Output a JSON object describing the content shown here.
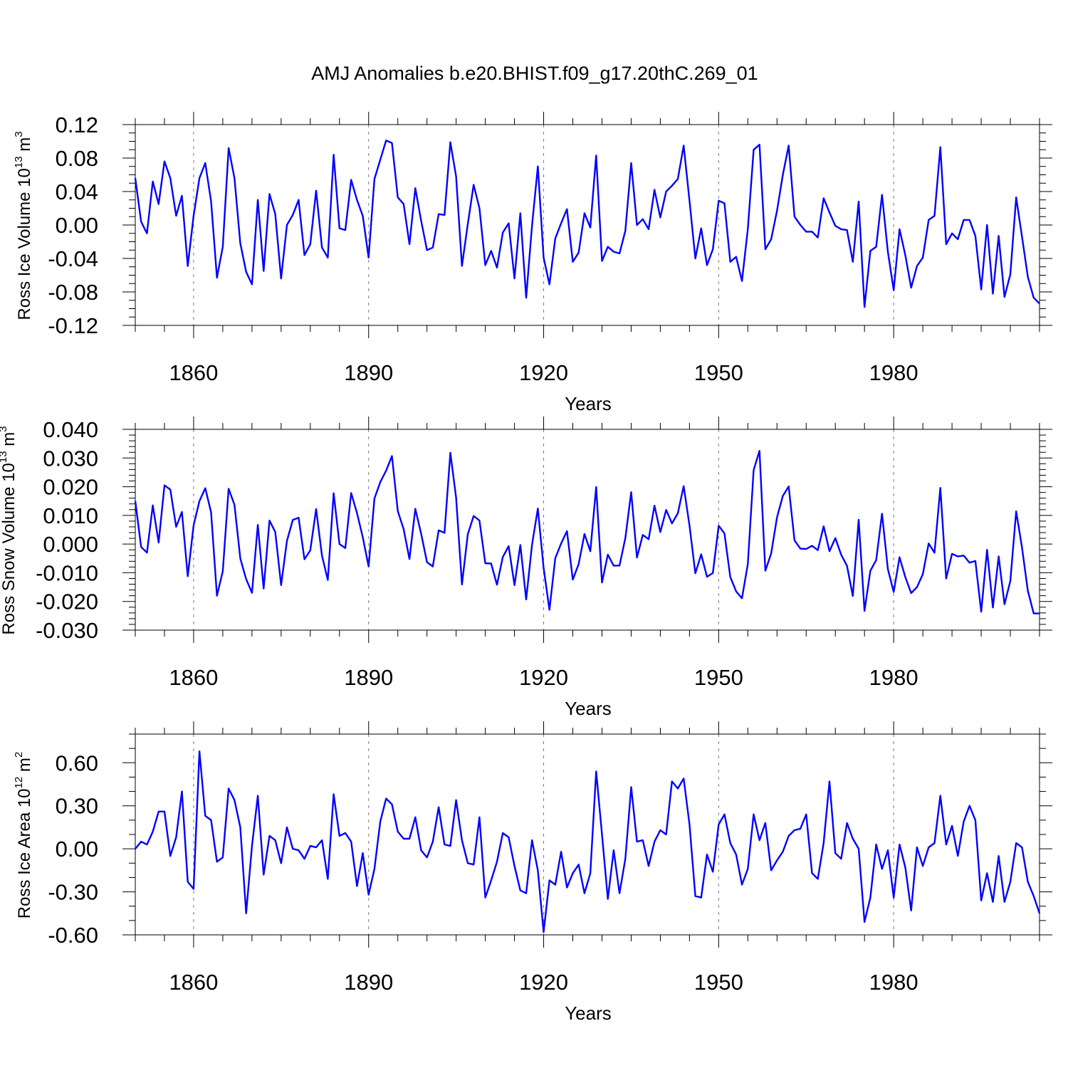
{
  "title": "AMJ Anomalies b.e20.BHIST.f09_g17.20thC.269_01",
  "colors": {
    "line": "#0000ff",
    "axis": "#000000",
    "grid": "#777777"
  },
  "chart_data": [
    {
      "type": "line",
      "ylabel": "Ross Ice Volume 10",
      "ylabel_exp": "13",
      "ylabel_unit": " m",
      "ylabel_unit_exp": "3",
      "xlabel": "Years",
      "xlim": [
        1850,
        2005
      ],
      "ylim": [
        -0.12,
        0.12
      ],
      "yticks": [
        -0.12,
        -0.08,
        -0.04,
        0.0,
        0.04,
        0.08,
        0.12
      ],
      "ytick_labels": [
        "-0.12",
        "-0.08",
        "-0.04",
        "0.00",
        "0.04",
        "0.08",
        "0.12"
      ],
      "ytick_minor_step": 0.01,
      "xticks": [
        1860,
        1890,
        1920,
        1950,
        1980
      ],
      "xtick_labels": [
        "1860",
        "1890",
        "1920",
        "1950",
        "1980"
      ],
      "xtick_minor_step": 5,
      "grid": "x-dashed",
      "series": [
        {
          "name": "Ross Ice Volume",
          "x_start": 1850,
          "values": [
            0.056,
            0.004,
            -0.01,
            0.052,
            0.025,
            0.076,
            0.056,
            0.011,
            0.035,
            -0.049,
            0.011,
            0.056,
            0.074,
            0.028,
            -0.063,
            -0.026,
            0.092,
            0.056,
            -0.022,
            -0.056,
            -0.071,
            0.03,
            -0.055,
            0.037,
            0.013,
            -0.064,
            0.0,
            0.012,
            0.03,
            -0.036,
            -0.023,
            0.041,
            -0.027,
            -0.039,
            0.084,
            -0.004,
            -0.006,
            0.054,
            0.03,
            0.011,
            -0.039,
            0.055,
            0.078,
            0.101,
            0.098,
            0.033,
            0.025,
            -0.023,
            0.044,
            0.005,
            -0.03,
            -0.027,
            0.013,
            0.012,
            0.099,
            0.058,
            -0.049,
            0.001,
            0.048,
            0.02,
            -0.048,
            -0.031,
            -0.051,
            -0.009,
            0.002,
            -0.064,
            0.014,
            -0.087,
            -0.001,
            0.07,
            -0.039,
            -0.071,
            -0.016,
            0.002,
            0.019,
            -0.044,
            -0.033,
            0.014,
            -0.003,
            0.083,
            -0.043,
            -0.026,
            -0.032,
            -0.034,
            -0.007,
            0.074,
            0.0,
            0.007,
            -0.005,
            0.042,
            0.009,
            0.04,
            0.047,
            0.055,
            0.095,
            0.029,
            -0.04,
            -0.004,
            -0.048,
            -0.029,
            0.029,
            0.026,
            -0.044,
            -0.038,
            -0.067,
            -0.005,
            0.09,
            0.096,
            -0.029,
            -0.017,
            0.017,
            0.06,
            0.095,
            0.01,
            0.0,
            -0.008,
            -0.008,
            -0.015,
            0.032,
            0.015,
            -0.001,
            -0.005,
            -0.006,
            -0.044,
            0.028,
            -0.098,
            -0.031,
            -0.026,
            0.036,
            -0.032,
            -0.078,
            -0.005,
            -0.036,
            -0.075,
            -0.049,
            -0.039,
            0.006,
            0.011,
            0.093,
            -0.023,
            -0.01,
            -0.017,
            0.006,
            0.006,
            -0.013,
            -0.077,
            0.0,
            -0.082,
            -0.013,
            -0.086,
            -0.059,
            0.033,
            -0.014,
            -0.062,
            -0.087,
            -0.094
          ]
        }
      ]
    },
    {
      "type": "line",
      "ylabel": "Ross Snow Volume 10",
      "ylabel_exp": "13",
      "ylabel_unit": " m",
      "ylabel_unit_exp": "3",
      "xlabel": "Years",
      "xlim": [
        1850,
        2005
      ],
      "ylim": [
        -0.03,
        0.04
      ],
      "yticks": [
        -0.03,
        -0.02,
        -0.01,
        0.0,
        0.01,
        0.02,
        0.03,
        0.04
      ],
      "ytick_labels": [
        "-0.030",
        "-0.020",
        "-0.010",
        "0.000",
        "0.010",
        "0.020",
        "0.030",
        "0.040"
      ],
      "ytick_minor_step": 0.002,
      "xticks": [
        1860,
        1890,
        1920,
        1950,
        1980
      ],
      "xtick_labels": [
        "1860",
        "1890",
        "1920",
        "1950",
        "1980"
      ],
      "xtick_minor_step": 5,
      "grid": "x-dashed",
      "series": [
        {
          "name": "Ross Snow Volume",
          "x_start": 1850,
          "values": [
            0.015,
            -0.001,
            -0.003,
            0.0135,
            0.0005,
            0.0205,
            0.019,
            0.006,
            0.0112,
            -0.0112,
            0.0065,
            0.015,
            0.0195,
            0.011,
            -0.018,
            -0.0095,
            0.0193,
            0.0137,
            -0.005,
            -0.0122,
            -0.017,
            0.0067,
            -0.0155,
            0.0082,
            0.0042,
            -0.0143,
            0.0011,
            0.0084,
            0.0092,
            -0.0053,
            -0.0022,
            0.0122,
            -0.004,
            -0.0125,
            0.0177,
            0.0,
            -0.0014,
            0.0178,
            0.0108,
            0.0024,
            -0.0078,
            0.0159,
            0.0216,
            0.0256,
            0.0307,
            0.0115,
            0.0052,
            -0.0052,
            0.0123,
            0.0036,
            -0.0063,
            -0.0078,
            0.0048,
            0.0039,
            0.0318,
            0.0162,
            -0.0141,
            0.0034,
            0.0098,
            0.0082,
            -0.0067,
            -0.0068,
            -0.0142,
            -0.0045,
            -0.0007,
            -0.0143,
            -0.0003,
            -0.0193,
            -0.0003,
            0.0124,
            -0.0083,
            -0.0229,
            -0.0049,
            0.0002,
            0.0045,
            -0.0124,
            -0.007,
            0.0035,
            -0.0025,
            0.0199,
            -0.0134,
            -0.0037,
            -0.0075,
            -0.0075,
            0.0021,
            0.0181,
            -0.0047,
            0.0032,
            0.0017,
            0.0134,
            0.0042,
            0.0119,
            0.0072,
            0.0107,
            0.0202,
            0.0065,
            -0.0102,
            -0.0036,
            -0.0114,
            -0.0101,
            0.0064,
            0.0037,
            -0.0115,
            -0.0165,
            -0.0189,
            -0.007,
            0.0258,
            0.0325,
            -0.0093,
            -0.0033,
            0.0093,
            0.0168,
            0.0201,
            0.0013,
            -0.0016,
            -0.0017,
            -0.0006,
            -0.0021,
            0.0062,
            -0.0025,
            0.0021,
            -0.0037,
            -0.0076,
            -0.0181,
            0.0085,
            -0.0233,
            -0.0093,
            -0.0056,
            0.0106,
            -0.0087,
            -0.0167,
            -0.0046,
            -0.0115,
            -0.0171,
            -0.015,
            -0.0105,
            0.0002,
            -0.003,
            0.0196,
            -0.012,
            -0.0034,
            -0.0043,
            -0.004,
            -0.0065,
            -0.0059,
            -0.0236,
            -0.002,
            -0.0221,
            -0.0043,
            -0.021,
            -0.0129,
            0.0114,
            -0.0012,
            -0.0163,
            -0.0242,
            -0.0242
          ]
        }
      ]
    },
    {
      "type": "line",
      "ylabel": "Ross Ice Area 10",
      "ylabel_exp": "12",
      "ylabel_unit": " m",
      "ylabel_unit_exp": "2",
      "xlabel": "Years",
      "xlim": [
        1850,
        2005
      ],
      "ylim": [
        -0.6,
        0.8
      ],
      "yticks": [
        -0.6,
        -0.3,
        0.0,
        0.3,
        0.6
      ],
      "ytick_labels": [
        "-0.60",
        "-0.30",
        "0.00",
        "0.30",
        "0.60"
      ],
      "ytick_minor_step": 0.1,
      "xticks": [
        1860,
        1890,
        1920,
        1950,
        1980
      ],
      "xtick_labels": [
        "1860",
        "1890",
        "1920",
        "1950",
        "1980"
      ],
      "xtick_minor_step": 5,
      "grid": "x-dashed",
      "series": [
        {
          "name": "Ross Ice Area",
          "x_start": 1850,
          "values": [
            0.0,
            0.05,
            0.03,
            0.12,
            0.26,
            0.26,
            -0.05,
            0.08,
            0.4,
            -0.23,
            -0.28,
            0.68,
            0.23,
            0.2,
            -0.09,
            -0.06,
            0.42,
            0.34,
            0.15,
            -0.45,
            0.02,
            0.37,
            -0.18,
            0.09,
            0.06,
            -0.1,
            0.15,
            0.0,
            -0.01,
            -0.07,
            0.02,
            0.01,
            0.06,
            -0.21,
            0.38,
            0.09,
            0.11,
            0.05,
            -0.26,
            -0.03,
            -0.32,
            -0.14,
            0.19,
            0.35,
            0.31,
            0.12,
            0.07,
            0.07,
            0.22,
            -0.01,
            -0.06,
            0.05,
            0.29,
            0.03,
            0.02,
            0.34,
            0.06,
            -0.1,
            -0.11,
            0.22,
            -0.34,
            -0.22,
            -0.09,
            0.11,
            0.08,
            -0.12,
            -0.29,
            -0.31,
            0.06,
            -0.15,
            -0.58,
            -0.22,
            -0.25,
            -0.02,
            -0.27,
            -0.17,
            -0.11,
            -0.31,
            -0.17,
            0.54,
            0.1,
            -0.35,
            -0.01,
            -0.31,
            -0.07,
            0.43,
            0.05,
            0.06,
            -0.12,
            0.05,
            0.13,
            0.1,
            0.47,
            0.42,
            0.49,
            0.17,
            -0.33,
            -0.34,
            -0.04,
            -0.16,
            0.17,
            0.24,
            0.04,
            -0.04,
            -0.25,
            -0.14,
            0.24,
            0.06,
            0.18,
            -0.15,
            -0.08,
            -0.02,
            0.09,
            0.13,
            0.14,
            0.24,
            -0.17,
            -0.21,
            0.04,
            0.47,
            -0.03,
            -0.07,
            0.18,
            0.07,
            0.0,
            -0.51,
            -0.34,
            0.03,
            -0.14,
            -0.01,
            -0.34,
            0.03,
            -0.13,
            -0.43,
            0.01,
            -0.12,
            0.01,
            0.04,
            0.37,
            0.03,
            0.16,
            -0.05,
            0.19,
            0.3,
            0.2,
            -0.36,
            -0.17,
            -0.37,
            -0.05,
            -0.37,
            -0.23,
            0.04,
            0.01,
            -0.23,
            -0.33,
            -0.45
          ]
        }
      ]
    }
  ]
}
